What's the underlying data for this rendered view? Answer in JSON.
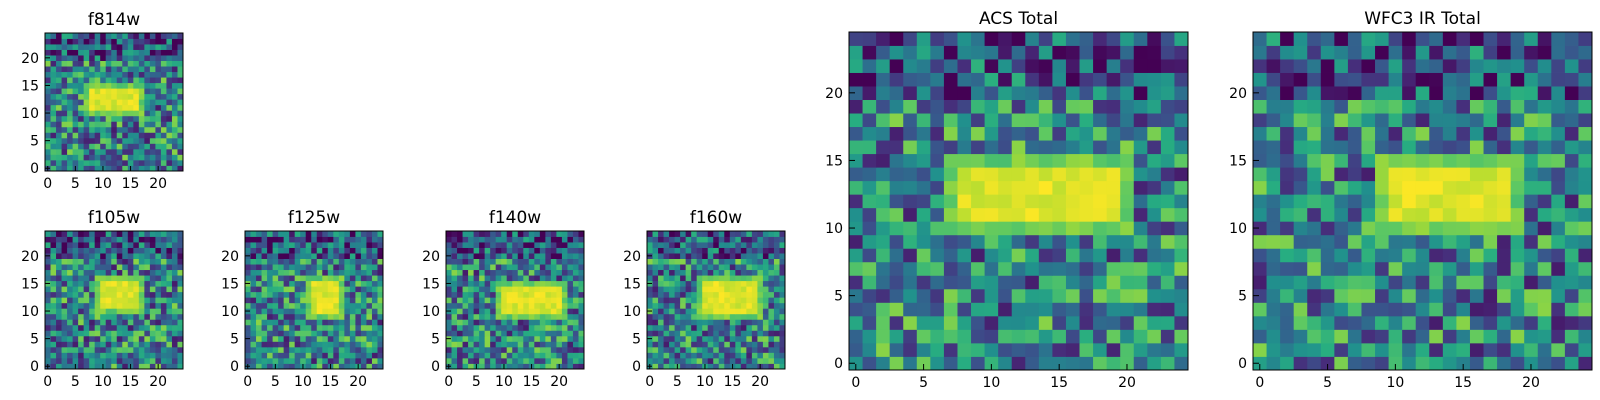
{
  "chart_data": [
    {
      "type": "heatmap",
      "title": "f814w",
      "xlim": [
        0,
        25
      ],
      "ylim": [
        0,
        25
      ],
      "xticks": [
        0,
        5,
        10,
        15,
        20
      ],
      "yticks": [
        0,
        5,
        10,
        15,
        20
      ],
      "colormap": "viridis",
      "source": {
        "x0": 8,
        "x1": 16,
        "y0": 11,
        "y1": 14
      }
    },
    {
      "type": "heatmap",
      "title": "f105w",
      "xlim": [
        0,
        25
      ],
      "ylim": [
        0,
        25
      ],
      "xticks": [
        0,
        5,
        10,
        15,
        20
      ],
      "yticks": [
        0,
        5,
        10,
        15,
        20
      ],
      "colormap": "viridis",
      "source": {
        "x0": 10,
        "x1": 16,
        "y0": 11,
        "y1": 15
      }
    },
    {
      "type": "heatmap",
      "title": "f125w",
      "xlim": [
        0,
        25
      ],
      "ylim": [
        0,
        25
      ],
      "xticks": [
        0,
        5,
        10,
        15,
        20
      ],
      "yticks": [
        0,
        5,
        10,
        15,
        20
      ],
      "colormap": "viridis",
      "source": {
        "x0": 12,
        "x1": 16,
        "y0": 10,
        "y1": 15
      }
    },
    {
      "type": "heatmap",
      "title": "f140w",
      "xlim": [
        0,
        25
      ],
      "ylim": [
        0,
        25
      ],
      "xticks": [
        0,
        5,
        10,
        15,
        20
      ],
      "yticks": [
        0,
        5,
        10,
        15,
        20
      ],
      "colormap": "viridis",
      "source": {
        "x0": 10,
        "x1": 20,
        "y0": 10,
        "y1": 14
      }
    },
    {
      "type": "heatmap",
      "title": "f160w",
      "xlim": [
        0,
        25
      ],
      "ylim": [
        0,
        25
      ],
      "xticks": [
        0,
        5,
        10,
        15,
        20
      ],
      "yticks": [
        0,
        5,
        10,
        15,
        20
      ],
      "colormap": "viridis",
      "source": {
        "x0": 10,
        "x1": 19,
        "y0": 10,
        "y1": 15
      }
    },
    {
      "type": "heatmap",
      "title": "ACS Total",
      "xlim": [
        0,
        25
      ],
      "ylim": [
        0,
        25
      ],
      "xticks": [
        0,
        5,
        10,
        15,
        20
      ],
      "yticks": [
        0,
        5,
        10,
        15,
        20
      ],
      "colormap": "viridis",
      "source": {
        "x0": 8,
        "x1": 19,
        "y0": 11,
        "y1": 14
      }
    },
    {
      "type": "heatmap",
      "title": "WFC3 IR Total",
      "xlim": [
        0,
        25
      ],
      "ylim": [
        0,
        25
      ],
      "xticks": [
        0,
        5,
        10,
        15,
        20
      ],
      "yticks": [
        0,
        5,
        10,
        15,
        20
      ],
      "colormap": "viridis",
      "source": {
        "x0": 10,
        "x1": 18,
        "y0": 11,
        "y1": 14
      }
    }
  ]
}
